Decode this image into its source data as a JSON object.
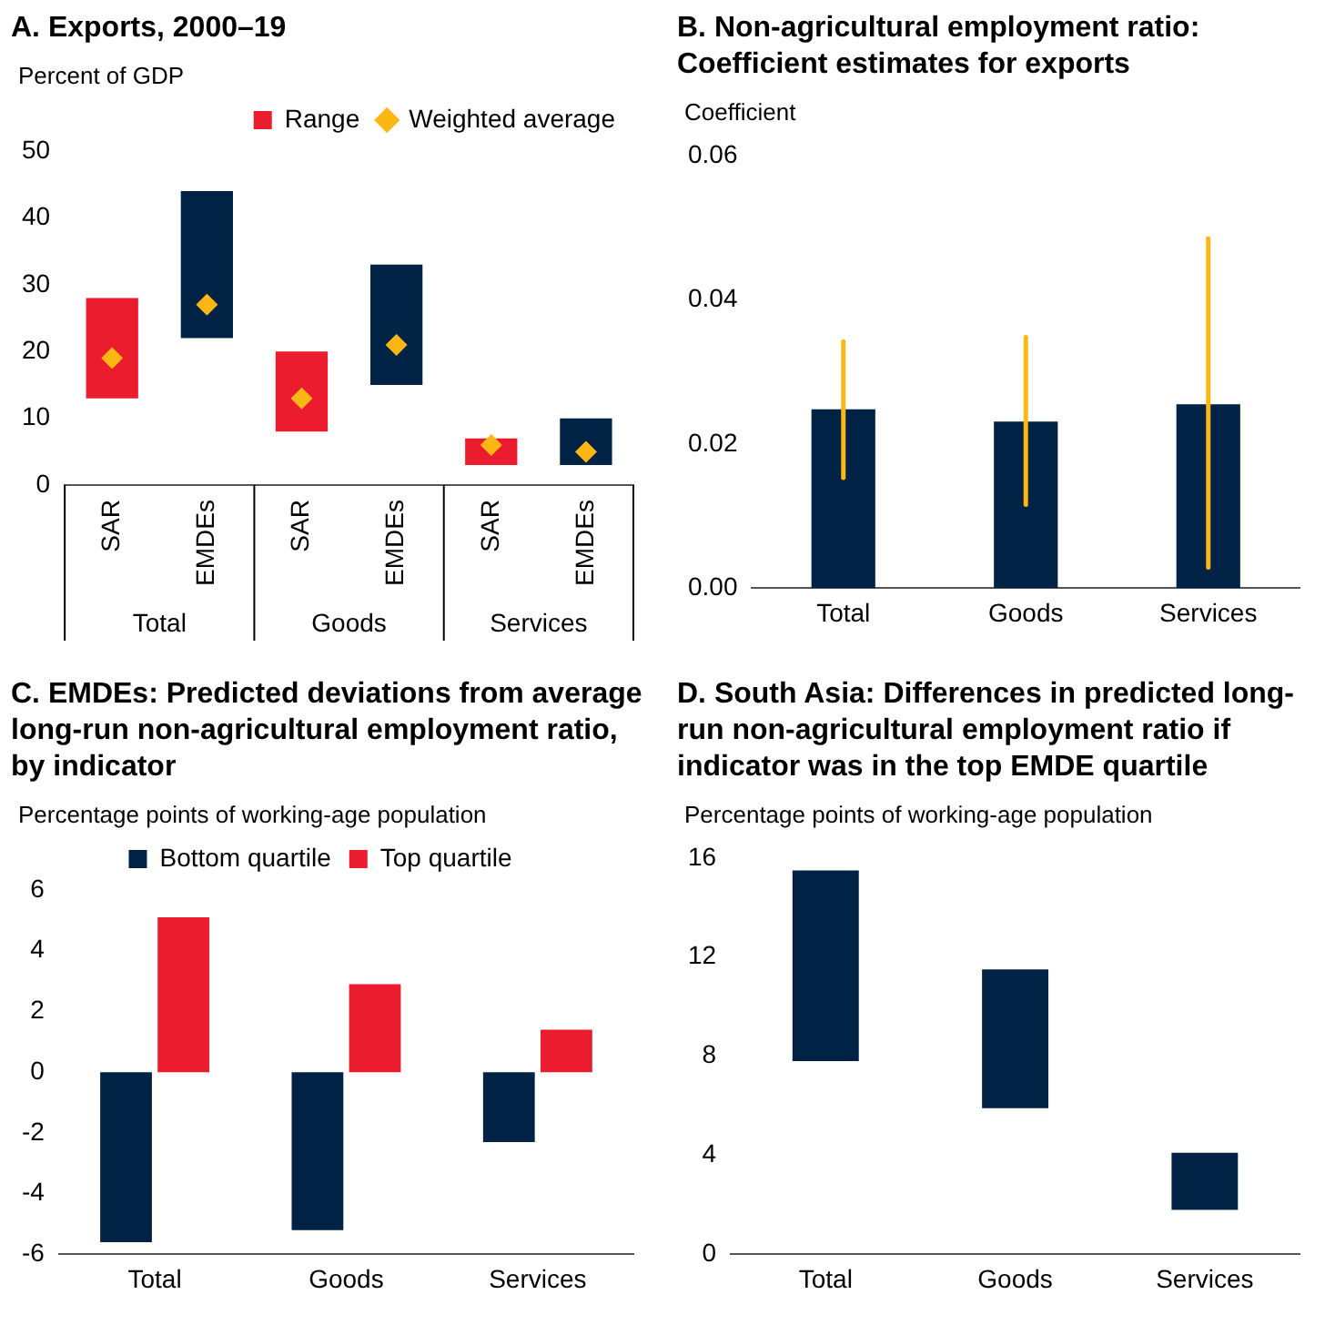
{
  "chart_data": [
    {
      "type": "bar",
      "title": "A. Exports, 2000–19",
      "ylabel": "Percent of GDP",
      "categories": [
        "SAR",
        "EMDEs",
        "SAR",
        "EMDEs",
        "SAR",
        "EMDEs"
      ],
      "annotations": [
        "Total",
        "Goods",
        "Services"
      ],
      "series": [
        {
          "name": "Range",
          "type": "bar",
          "color": "#eb1c2d",
          "colors": [
            "#eb1c2d",
            "#002345",
            "#eb1c2d",
            "#002345",
            "#eb1c2d",
            "#002345"
          ],
          "base": [
            13,
            22,
            8,
            15,
            3,
            3
          ],
          "values": [
            15,
            22,
            12,
            18,
            4,
            7
          ]
        },
        {
          "name": "Weighted average",
          "type": "scatter",
          "color": "#fdb714",
          "marker": "diamond",
          "values": [
            19,
            27,
            13,
            21,
            6,
            5
          ]
        }
      ],
      "ylim": [
        0,
        50
      ],
      "yticks": [
        0,
        10,
        20,
        30,
        40,
        50
      ],
      "grid": false,
      "legend": "top right"
    },
    {
      "type": "bar",
      "title": "B. Non-agricultural employment ratio: Coefficient estimates for exports",
      "ylabel": "Coefficient",
      "categories": [
        "Total",
        "Goods",
        "Services"
      ],
      "series": [
        {
          "color": "#002345",
          "values": [
            0.0248,
            0.0231,
            0.0255
          ],
          "errors": [
            [
              0.0153,
              0.0342
            ],
            [
              0.0116,
              0.0348
            ],
            [
              0.0029,
              0.0485
            ]
          ]
        }
      ],
      "ylim": [
        0,
        0.06
      ],
      "yticks": [
        {
          "value": 0,
          "label": "0.00"
        },
        {
          "value": 0.02,
          "label": "0.02"
        },
        {
          "value": 0.04,
          "label": "0.04"
        },
        {
          "value": 0.06,
          "label": "0.06"
        }
      ],
      "grid": false
    },
    {
      "type": "bar",
      "title": "C. EMDEs: Predicted deviations from average long-run non-agricultural employment ratio, by indicator",
      "ylabel": "Percentage points of working-age population",
      "categories": [
        "Total",
        "Goods",
        "Services"
      ],
      "series": [
        {
          "name": "Bottom quartile",
          "color": "#002345",
          "values": [
            -5.6,
            -5.2,
            -2.3
          ]
        },
        {
          "name": "Top quartile",
          "color": "#eb1c2d",
          "values": [
            5.1,
            2.9,
            1.4
          ]
        }
      ],
      "ylim": [
        -6,
        6
      ],
      "yticks": [
        -6,
        -4,
        -2,
        0,
        2,
        4,
        6
      ],
      "grid": false,
      "legend": "top"
    },
    {
      "type": "bar",
      "title": "D. South Asia: Differences in predicted long-run non-agricultural employment ratio if indicator was in the top EMDE quartile",
      "ylabel": "Percentage points of working-age population",
      "categories": [
        "Total",
        "Goods",
        "Services"
      ],
      "series": [
        {
          "color": "#002345",
          "base": [
            7.8,
            5.9,
            1.8
          ],
          "values": [
            7.7,
            5.6,
            2.3
          ]
        }
      ],
      "ylim": [
        0,
        16
      ],
      "yticks": [
        0,
        4,
        8,
        12,
        16
      ],
      "grid": false
    }
  ]
}
